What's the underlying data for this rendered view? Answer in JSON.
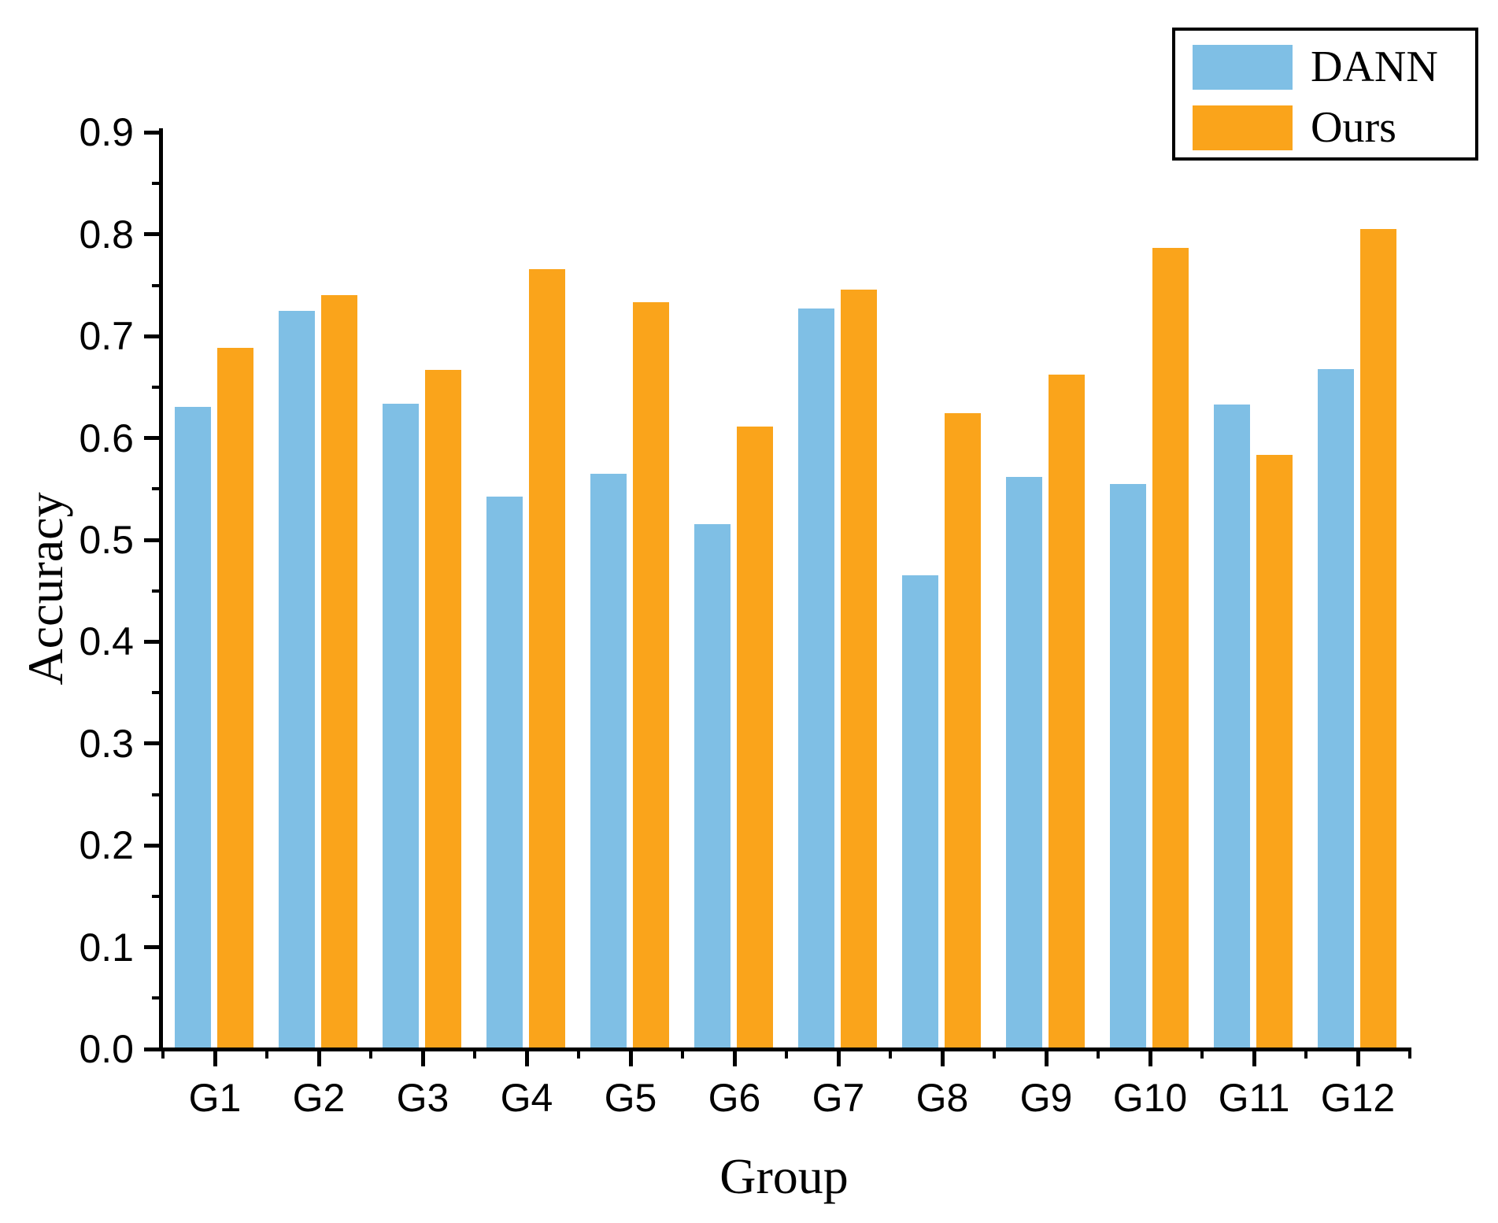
{
  "chart_data": {
    "type": "bar",
    "title": "",
    "xlabel": "Group",
    "ylabel": "Accuracy",
    "categories": [
      "G1",
      "G2",
      "G3",
      "G4",
      "G5",
      "G6",
      "G7",
      "G8",
      "G9",
      "G10",
      "G11",
      "G12"
    ],
    "series": [
      {
        "name": "DANN",
        "color": "#7FBFE5",
        "values": [
          0.629,
          0.723,
          0.632,
          0.541,
          0.563,
          0.514,
          0.726,
          0.464,
          0.56,
          0.553,
          0.631,
          0.666
        ]
      },
      {
        "name": "Ours",
        "color": "#FAA41B",
        "values": [
          0.687,
          0.739,
          0.665,
          0.764,
          0.732,
          0.61,
          0.744,
          0.623,
          0.661,
          0.785,
          0.582,
          0.804
        ]
      }
    ],
    "ylim": [
      0.0,
      0.9
    ],
    "ytick_step": 0.1,
    "ytick_labels": [
      "0.0",
      "0.1",
      "0.2",
      "0.3",
      "0.4",
      "0.5",
      "0.6",
      "0.7",
      "0.8",
      "0.9"
    ],
    "yminor_step": 0.05,
    "grid": "off",
    "legend_position": "top-right",
    "axis_color": "#000000",
    "background_color": "#ffffff"
  }
}
